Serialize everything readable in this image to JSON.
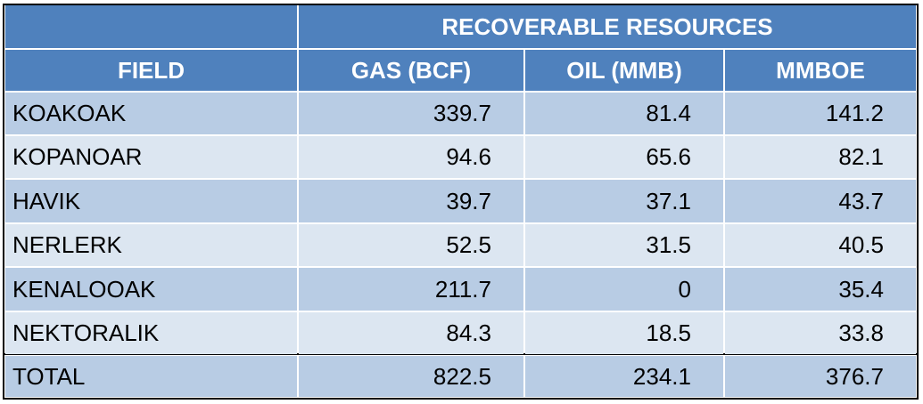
{
  "table": {
    "group_header": "RECOVERABLE RESOURCES",
    "columns": [
      "FIELD",
      "GAS (BCF)",
      "OIL (MMB)",
      "MMBOE"
    ],
    "rows": [
      [
        "KOAKOAK",
        339.7,
        81.4,
        141.2
      ],
      [
        "KOPANOAR",
        94.6,
        65.6,
        82.1
      ],
      [
        "HAVIK",
        39.7,
        37.1,
        43.7
      ],
      [
        "NERLERK",
        52.5,
        31.5,
        40.5
      ],
      [
        "KENALOOAK",
        211.7,
        0,
        35.4
      ],
      [
        "NEKTORALIK",
        84.3,
        18.5,
        33.8
      ]
    ],
    "total": [
      "TOTAL",
      822.5,
      234.1,
      376.7
    ]
  }
}
